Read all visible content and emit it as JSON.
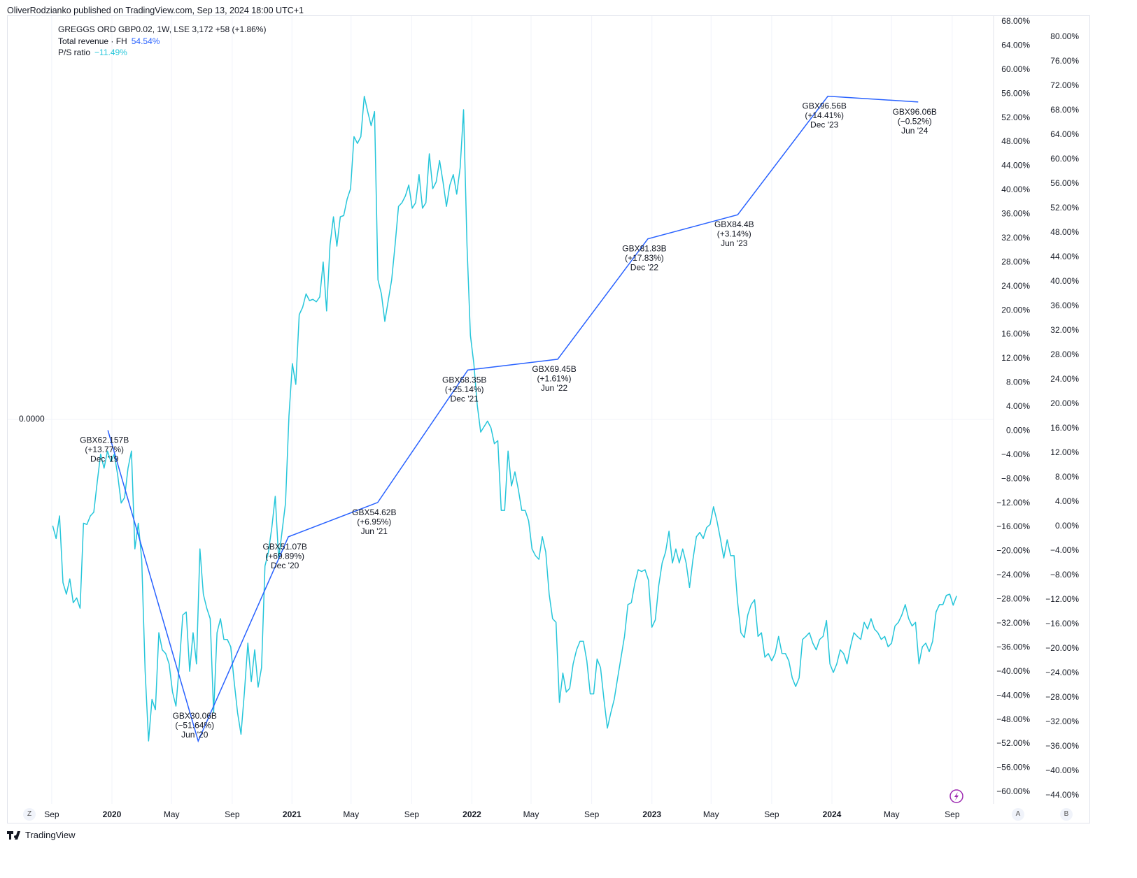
{
  "header": {
    "published": "OliverRodzianko published on TradingView.com, Sep 13, 2024 18:00 UTC+1"
  },
  "legend": {
    "symbol": "GREGGS ORD GBP0.02, 1W, LSE  3,172  +58 (+1.86%)",
    "revenue_label": "Total revenue · FH",
    "revenue_value": "54.54%",
    "ps_label": "P/S ratio",
    "ps_value": "−11.49%"
  },
  "left_scale_label": "0.0000",
  "buttons": {
    "z": "Z",
    "a": "A",
    "b": "B"
  },
  "footer": {
    "brand": "TradingView"
  },
  "colors": {
    "revenue": "#2962ff",
    "ps": "#26c6da",
    "grid": "#f0f3fa",
    "lightning": "#9c27b0"
  },
  "chart_data": {
    "type": "line",
    "title": "GREGGS ORD GBP0.02, 1W, LSE",
    "x_ticks": [
      {
        "label": "Sep",
        "date": "2019-09-01",
        "bold": false
      },
      {
        "label": "2020",
        "date": "2020-01-01",
        "bold": true
      },
      {
        "label": "May",
        "date": "2020-05-01",
        "bold": false
      },
      {
        "label": "Sep",
        "date": "2020-09-01",
        "bold": false
      },
      {
        "label": "2021",
        "date": "2021-01-01",
        "bold": true
      },
      {
        "label": "May",
        "date": "2021-05-01",
        "bold": false
      },
      {
        "label": "Sep",
        "date": "2021-09-01",
        "bold": false
      },
      {
        "label": "2022",
        "date": "2022-01-01",
        "bold": true
      },
      {
        "label": "May",
        "date": "2022-05-01",
        "bold": false
      },
      {
        "label": "Sep",
        "date": "2022-09-01",
        "bold": false
      },
      {
        "label": "2023",
        "date": "2023-01-01",
        "bold": true
      },
      {
        "label": "May",
        "date": "2023-05-01",
        "bold": false
      },
      {
        "label": "Sep",
        "date": "2023-09-01",
        "bold": false
      },
      {
        "label": "2024",
        "date": "2024-01-01",
        "bold": true
      },
      {
        "label": "May",
        "date": "2024-05-01",
        "bold": false
      },
      {
        "label": "Sep",
        "date": "2024-09-01",
        "bold": false
      }
    ],
    "axis_revenue": {
      "range": [
        -60,
        68
      ],
      "step": 4,
      "unit": "%"
    },
    "axis_ps": {
      "range": [
        -44,
        80
      ],
      "step": 4,
      "unit": "%"
    },
    "series": [
      {
        "name": "Total revenue · FH",
        "axis": "revenue",
        "points": [
          {
            "date": "2019-12-24",
            "value": 0.0,
            "l1": "GBX62.157B",
            "l2": "(+13.77%)",
            "l3": "Dec '19"
          },
          {
            "date": "2020-06-24",
            "value": -51.64,
            "l1": "GBX30.06B",
            "l2": "(−51.64%)",
            "l3": "Jun '20"
          },
          {
            "date": "2020-12-24",
            "value": -17.7,
            "l1": "GBX51.07B",
            "l2": "(+69.89%)",
            "l3": "Dec '20"
          },
          {
            "date": "2021-06-24",
            "value": -12.0,
            "l1": "GBX54.62B",
            "l2": "(+6.95%)",
            "l3": "Jun '21"
          },
          {
            "date": "2021-12-24",
            "value": 10.0,
            "l1": "GBX68.35B",
            "l2": "(+25.14%)",
            "l3": "Dec '21"
          },
          {
            "date": "2022-06-24",
            "value": 11.8,
            "l1": "GBX69.45B",
            "l2": "(+1.61%)",
            "l3": "Jun '22"
          },
          {
            "date": "2022-12-24",
            "value": 31.8,
            "l1": "GBX81.83B",
            "l2": "(+17.83%)",
            "l3": "Dec '22"
          },
          {
            "date": "2023-06-24",
            "value": 35.8,
            "l1": "GBX84.4B",
            "l2": "(+3.14%)",
            "l3": "Jun '23"
          },
          {
            "date": "2023-12-24",
            "value": 55.5,
            "l1": "GBX96.56B",
            "l2": "(+14.41%)",
            "l3": "Dec '23"
          },
          {
            "date": "2024-06-24",
            "value": 54.54,
            "l1": "GBX96.06B",
            "l2": "(−0.52%)",
            "l3": "Jun '24"
          }
        ]
      },
      {
        "name": "P/S ratio",
        "axis": "ps",
        "start": "2019-09-03",
        "end": "2024-09-10",
        "values": [
          0.0,
          -2.1,
          1.6,
          -9.3,
          -11.2,
          -8.7,
          -12.6,
          -11.8,
          -13.5,
          0.4,
          0.2,
          1.6,
          2.2,
          7.1,
          11.7,
          9.4,
          12.2,
          10.5,
          11.7,
          8.2,
          3.7,
          4.6,
          9.4,
          12.2,
          -3.8,
          0.4,
          -5.5,
          -23.8,
          -35.2,
          -28.4,
          -30.1,
          -17.5,
          -20.3,
          -20.9,
          -22.6,
          -27.2,
          -29.5,
          -22.6,
          -14.6,
          -14.1,
          -23.8,
          -17.5,
          -22.6,
          -3.8,
          -11.2,
          -13.5,
          -15.2,
          -30.6,
          -17.5,
          -15.2,
          -18.6,
          -18.6,
          -19.8,
          -25.5,
          -30.6,
          -34.1,
          -27.2,
          -19.2,
          -25.5,
          -20.3,
          -26.4,
          -23.2,
          -6.6,
          -4.3,
          -0.3,
          4.8,
          -5.5,
          -0.9,
          3.7,
          17.9,
          26.5,
          23.1,
          34.5,
          35.7,
          37.9,
          36.8,
          37.0,
          36.6,
          37.4,
          43.1,
          35.1,
          45.9,
          50.5,
          45.7,
          50.5,
          50.7,
          53.4,
          55.1,
          63.6,
          62.5,
          63.6,
          70.2,
          67.7,
          65.4,
          67.7,
          40.2,
          37.9,
          33.4,
          36.8,
          40.2,
          45.9,
          52.2,
          52.8,
          53.9,
          55.7,
          51.9,
          52.8,
          57.4,
          51.9,
          52.8,
          60.8,
          55.1,
          56.2,
          59.7,
          56.2,
          52.2,
          55.7,
          57.4,
          54.2,
          58.5,
          68.0,
          45.9,
          31.1,
          26.5,
          19.7,
          15.3,
          16.2,
          17.1,
          16.0,
          13.4,
          13.9,
          2.5,
          2.5,
          12.2,
          6.5,
          8.8,
          5.9,
          2.5,
          2.5,
          0.8,
          -3.8,
          -4.9,
          -5.5,
          -1.8,
          -4.3,
          -11.2,
          -15.2,
          -15.8,
          -28.9,
          -24.1,
          -27.2,
          -26.6,
          -22.6,
          -20.3,
          -18.9,
          -18.9,
          -22.1,
          -27.5,
          -27.5,
          -21.8,
          -23.2,
          -28.4,
          -33.1,
          -30.6,
          -28.4,
          -24.9,
          -21.5,
          -18.1,
          -12.9,
          -12.6,
          -9.5,
          -7.2,
          -7.5,
          -7.2,
          -8.9,
          -16.6,
          -15.4,
          -9.8,
          -6.1,
          -4.3,
          -0.9,
          -6.1,
          -3.8,
          -6.1,
          -3.8,
          -6.1,
          -10.1,
          -5.5,
          -1.8,
          -1.1,
          -2.1,
          -0.3,
          0.2,
          3.1,
          0.8,
          -2.1,
          -5.3,
          -2.3,
          -4.9,
          -4.9,
          -12.3,
          -17.5,
          -18.3,
          -14.6,
          -12.9,
          -12.1,
          -18.1,
          -17.5,
          -21.5,
          -20.9,
          -22.1,
          -20.9,
          -18.1,
          -20.9,
          -20.9,
          -22.1,
          -24.9,
          -26.3,
          -24.9,
          -18.6,
          -18.1,
          -17.5,
          -19.2,
          -20.3,
          -18.6,
          -18.1,
          -15.5,
          -22.6,
          -24.0,
          -22.6,
          -20.3,
          -20.9,
          -22.6,
          -19.8,
          -17.5,
          -18.1,
          -18.6,
          -15.8,
          -16.9,
          -15.2,
          -16.9,
          -17.5,
          -18.6,
          -18.1,
          -19.8,
          -19.2,
          -16.4,
          -15.8,
          -14.6,
          -12.9,
          -15.2,
          -16.4,
          -15.8,
          -22.6,
          -19.8,
          -19.2,
          -20.6,
          -18.9,
          -14.1,
          -12.9,
          -12.9,
          -11.4,
          -11.2,
          -13.0,
          -11.49
        ]
      }
    ]
  }
}
